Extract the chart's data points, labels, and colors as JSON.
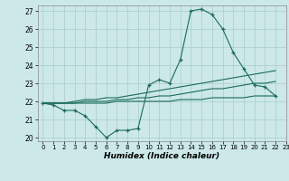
{
  "title": "",
  "xlabel": "Humidex (Indice chaleur)",
  "ylabel": "",
  "background_color": "#cce8e8",
  "grid_color": "#aacccc",
  "line_color": "#1a6b5a",
  "xlim": [
    -0.5,
    23
  ],
  "ylim": [
    19.8,
    27.3
  ],
  "xticks": [
    0,
    1,
    2,
    3,
    4,
    5,
    6,
    7,
    8,
    9,
    10,
    11,
    12,
    13,
    14,
    15,
    16,
    17,
    18,
    19,
    20,
    21,
    22,
    23
  ],
  "yticks": [
    20,
    21,
    22,
    23,
    24,
    25,
    26,
    27
  ],
  "series": [
    [
      21.9,
      21.8,
      21.5,
      21.5,
      21.2,
      20.6,
      20.0,
      20.4,
      20.4,
      20.5,
      22.9,
      23.2,
      23.0,
      24.3,
      27.0,
      27.1,
      26.8,
      26.0,
      24.7,
      23.8,
      22.9,
      22.8,
      22.3
    ],
    [
      21.9,
      21.9,
      21.9,
      22.0,
      22.1,
      22.1,
      22.2,
      22.2,
      22.3,
      22.4,
      22.5,
      22.6,
      22.7,
      22.8,
      22.9,
      23.0,
      23.1,
      23.2,
      23.3,
      23.4,
      23.5,
      23.6,
      23.7
    ],
    [
      21.9,
      21.9,
      21.9,
      21.9,
      22.0,
      22.0,
      22.0,
      22.1,
      22.1,
      22.2,
      22.2,
      22.3,
      22.3,
      22.4,
      22.5,
      22.6,
      22.7,
      22.7,
      22.8,
      22.9,
      23.0,
      23.0,
      23.1
    ],
    [
      21.9,
      21.9,
      21.9,
      21.9,
      21.9,
      21.9,
      21.9,
      22.0,
      22.0,
      22.0,
      22.0,
      22.0,
      22.0,
      22.1,
      22.1,
      22.1,
      22.2,
      22.2,
      22.2,
      22.2,
      22.3,
      22.3,
      22.3
    ]
  ]
}
